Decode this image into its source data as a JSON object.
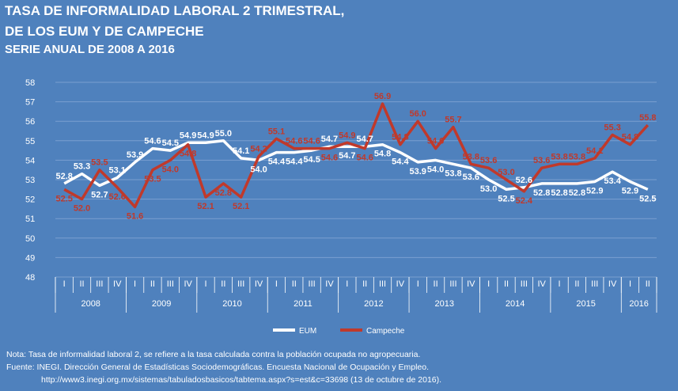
{
  "header": {
    "title_line1": "TASA DE INFORMALIDAD LABORAL 2 TRIMESTRAL,",
    "title_line2": "DE LOS EUM Y DE CAMPECHE",
    "subtitle": "SERIE ANUAL DE 2008 A 2016"
  },
  "colors": {
    "eum": "#ffffff",
    "campeche": "#c0392b",
    "background": "#4f81bd",
    "grid": "#7a9fd0"
  },
  "chart_data": {
    "type": "line",
    "ylim": [
      48,
      58
    ],
    "yticks": [
      48,
      49,
      50,
      51,
      52,
      53,
      54,
      55,
      56,
      57,
      58
    ],
    "grid": true,
    "legend": "bottom",
    "quarters": [
      "I",
      "II",
      "III",
      "IV",
      "I",
      "II",
      "III",
      "IV",
      "I",
      "II",
      "III",
      "IV",
      "I",
      "II",
      "III",
      "IV",
      "I",
      "II",
      "III",
      "IV",
      "I",
      "II",
      "III",
      "IV",
      "I",
      "II",
      "III",
      "IV",
      "I",
      "II",
      "III",
      "IV",
      "I",
      "II"
    ],
    "years": [
      {
        "label": "2008",
        "count": 4
      },
      {
        "label": "2009",
        "count": 4
      },
      {
        "label": "2010",
        "count": 4
      },
      {
        "label": "2011",
        "count": 4
      },
      {
        "label": "2012",
        "count": 4
      },
      {
        "label": "2013",
        "count": 4
      },
      {
        "label": "2014",
        "count": 4
      },
      {
        "label": "2015",
        "count": 4
      },
      {
        "label": "2016",
        "count": 2
      }
    ],
    "series": [
      {
        "name": "EUM",
        "values": [
          52.8,
          53.3,
          52.7,
          53.1,
          53.9,
          54.6,
          54.5,
          54.9,
          54.9,
          55.0,
          54.1,
          54.0,
          54.4,
          54.4,
          54.5,
          54.7,
          54.7,
          54.7,
          54.8,
          54.4,
          53.9,
          54.0,
          53.8,
          53.6,
          53.0,
          52.5,
          52.6,
          52.8,
          52.8,
          52.8,
          52.9,
          53.4,
          52.9,
          52.5
        ]
      },
      {
        "name": "Campeche",
        "values": [
          52.5,
          52.0,
          53.5,
          52.6,
          51.6,
          53.5,
          54.0,
          54.8,
          52.1,
          52.8,
          52.1,
          54.2,
          55.1,
          54.6,
          54.6,
          54.6,
          54.9,
          54.6,
          56.9,
          54.8,
          56.0,
          54.6,
          55.7,
          53.8,
          53.6,
          53.0,
          52.4,
          53.6,
          53.8,
          53.8,
          54.1,
          55.3,
          54.8,
          55.8
        ]
      }
    ]
  },
  "notes": {
    "line1": "Nota: Tasa de informalidad laboral 2, se refiere a la tasa calculada contra la población ocupada no agropecuaria.",
    "line2": "Fuente:  INEGI. Dirección General de Estadísticas Sociodemográficas. Encuesta Nacional de Ocupación y Empleo.",
    "line3": "http://www3.inegi.org.mx/sistemas/tabuladosbasicos/tabtema.aspx?s=est&c=33698 (13 de octubre de 2016)."
  }
}
